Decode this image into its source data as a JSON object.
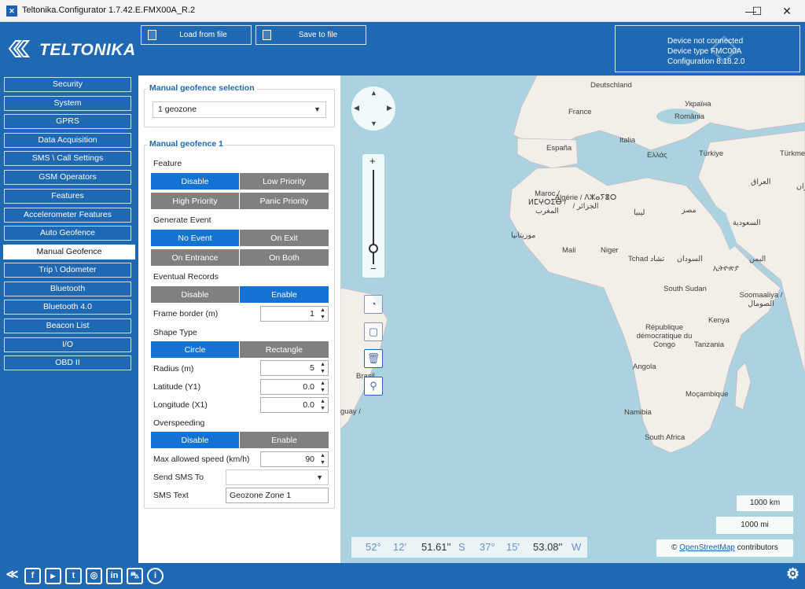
{
  "window": {
    "title": "Teltonika.Configurator 1.7.42.E.FMX00A_R.2",
    "minimize": "—",
    "maximize": "☐",
    "close": "✕"
  },
  "header": {
    "logo_text": "TELTONIKA",
    "load_button": "Load from file",
    "save_button": "Save to file",
    "device_status": "Device not connected",
    "device_type": "Device type FMC00A",
    "configuration": "Configuration 8.18.2.0"
  },
  "sidebar": {
    "items": [
      {
        "label": "Security"
      },
      {
        "label": "System"
      },
      {
        "label": "GPRS"
      },
      {
        "label": "Data Acquisition"
      },
      {
        "label": "SMS \\ Call Settings"
      },
      {
        "label": "GSM Operators"
      },
      {
        "label": "Features"
      },
      {
        "label": "Accelerometer Features"
      },
      {
        "label": "Auto Geofence"
      },
      {
        "label": "Manual Geofence"
      },
      {
        "label": "Trip \\ Odometer"
      },
      {
        "label": "Bluetooth"
      },
      {
        "label": "Bluetooth 4.0"
      },
      {
        "label": "Beacon List"
      },
      {
        "label": "I/O"
      },
      {
        "label": "OBD II"
      }
    ],
    "active": "Manual Geofence"
  },
  "selection": {
    "title": "Manual geofence selection",
    "value": "1 geozone"
  },
  "geofence": {
    "title": "Manual geofence 1",
    "feature_label": "Feature",
    "feature_options": [
      "Disable",
      "Low Priority",
      "High Priority",
      "Panic Priority"
    ],
    "feature_selected": "Disable",
    "generate_event_label": "Generate Event",
    "event_options": [
      "No Event",
      "On Exit",
      "On Entrance",
      "On Both"
    ],
    "event_selected": "No Event",
    "eventual_records_label": "Eventual Records",
    "eventual_options": [
      "Disable",
      "Enable"
    ],
    "eventual_selected": "Enable",
    "frame_border_label": "Frame border   (m)",
    "frame_border_value": "1",
    "shape_type_label": "Shape Type",
    "shape_options": [
      "Circle",
      "Rectangle"
    ],
    "shape_selected": "Circle",
    "radius_label": "Radius   (m)",
    "radius_value": "5",
    "latitude_label": "Latitude (Y1)",
    "latitude_value": "0.0",
    "longitude_label": "Longitude (X1)",
    "longitude_value": "0.0",
    "overspeeding_label": "Overspeeding",
    "overspeeding_options": [
      "Disable",
      "Enable"
    ],
    "overspeeding_selected": "Disable",
    "max_speed_label": "Max allowed speed (km/h)",
    "max_speed_value": "90",
    "send_sms_label": "Send SMS To",
    "send_sms_value": "",
    "sms_text_label": "SMS Text",
    "sms_text_value": "Geozone Zone 1"
  },
  "map": {
    "labels": [
      "Deutschland",
      "France",
      "Україна",
      "România",
      "Italia",
      "España",
      "Ελλάς",
      "Türkiye",
      "Türkme",
      "العراق",
      "ایران",
      "Maroc / ⵍⵎⵖⵔⵉⴱ / المغرب",
      "Algérie / ⴷⵣⴰⵢⴻⵔ / الجزائر",
      "ليبيا",
      "مصر",
      "السعودية",
      "موريتانيا",
      "Mali",
      "Niger",
      "Tchad تشاد",
      "السودان",
      "اليمن",
      "ኢትዮጵያ",
      "South Sudan",
      "Soomaaliya / الصومال",
      "République démocratique du Congo",
      "Kenya",
      "Tanzania",
      "Angola",
      "Moçambique",
      "Namibia",
      "South Africa",
      "Brasil",
      "guay /"
    ],
    "scale_km": "1000 km",
    "scale_mi": "1000 mi",
    "coords": {
      "lat_deg": "52°",
      "lat_min": "12'",
      "lat_sec": "51.61''",
      "lat_hem": "S",
      "lon_deg": "37°",
      "lon_min": "15'",
      "lon_sec": "53.08''",
      "lon_hem": "W"
    },
    "attribution_prefix": "©",
    "attribution_link": "OpenStreetMap",
    "attribution_suffix": "contributors"
  },
  "footer": {
    "icons": [
      "teltonika-icon",
      "facebook-icon",
      "youtube-icon",
      "twitter-icon",
      "instagram-icon",
      "linkedin-icon",
      "car-icon",
      "info-icon"
    ],
    "settings_icon": "gear-icon"
  },
  "colors": {
    "brand_blue": "#1e68b4",
    "active_blue": "#1473d2",
    "inactive_gray": "#808080",
    "sea": "#aad3df",
    "land": "#f2efe9"
  }
}
